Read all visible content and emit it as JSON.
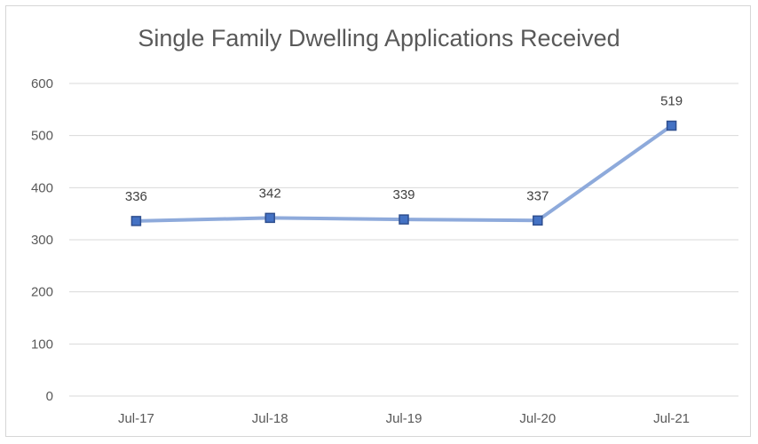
{
  "chart_data": {
    "type": "line",
    "title": "Single Family Dwelling Applications Received",
    "categories": [
      "Jul-17",
      "Jul-18",
      "Jul-19",
      "Jul-20",
      "Jul-21"
    ],
    "series": [
      {
        "values": [
          336,
          342,
          339,
          337,
          519
        ],
        "data_labels": [
          "336",
          "342",
          "339",
          "337",
          "519"
        ],
        "color": "#8eaadb",
        "marker_fill": "#4472c4",
        "marker_stroke": "#2f4f8f"
      }
    ],
    "y_ticks": [
      "0",
      "100",
      "200",
      "300",
      "400",
      "500",
      "600"
    ],
    "ylim": [
      0,
      600
    ],
    "grid": true,
    "legend": "none"
  }
}
